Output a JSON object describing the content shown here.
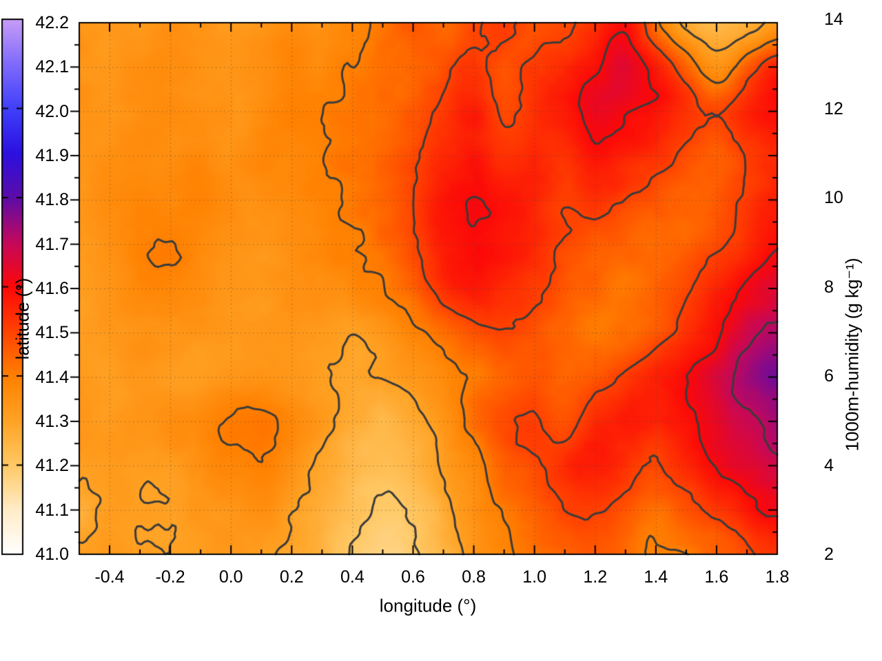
{
  "figure": {
    "background": "#ffffff",
    "axis_color": "#000000"
  },
  "chart_data": {
    "type": "heatmap",
    "title": "",
    "xlabel": "longitude (°)",
    "ylabel": "latitude (°)",
    "xlim": [
      -0.5,
      1.8
    ],
    "ylim": [
      41.0,
      42.2
    ],
    "grid_on": true,
    "grid_color": "rgba(70,70,70,0.55)",
    "xticks": {
      "values": [
        -0.4,
        -0.2,
        0.0,
        0.2,
        0.4,
        0.6,
        0.8,
        1.0,
        1.2,
        1.4,
        1.6,
        1.8
      ],
      "labels": [
        "-0.4",
        "-0.2",
        "0.0",
        "0.2",
        "0.4",
        "0.6",
        "0.8",
        "1.0",
        "1.2",
        "1.4",
        "1.6",
        "1.8"
      ],
      "minor_step": 0.1
    },
    "yticks": {
      "values": [
        41.0,
        41.1,
        41.2,
        41.3,
        41.4,
        41.5,
        41.6,
        41.7,
        41.8,
        41.9,
        42.0,
        42.1,
        42.2
      ],
      "labels": [
        "41.0",
        "41.1",
        "41.2",
        "41.3",
        "41.4",
        "41.5",
        "41.6",
        "41.7",
        "41.8",
        "41.9",
        "42.0",
        "42.1",
        "42.2"
      ],
      "minor_step": 0.05
    },
    "colorbar": {
      "label": "1000m-humidity (g kg⁻¹)",
      "min": 2,
      "max": 14,
      "ticks": [
        2,
        4,
        6,
        8,
        10,
        12,
        14
      ],
      "tick_labels": [
        "2",
        "4",
        "6",
        "8",
        "10",
        "12",
        "14"
      ],
      "palette_stops": [
        [
          2,
          "#ffffff"
        ],
        [
          3,
          "#ffecc7"
        ],
        [
          4,
          "#ffc864"
        ],
        [
          5,
          "#ffa224"
        ],
        [
          6,
          "#ff8000"
        ],
        [
          7,
          "#ff4200"
        ],
        [
          8,
          "#fc0808"
        ],
        [
          9,
          "#c4085c"
        ],
        [
          10,
          "#5c0ca8"
        ],
        [
          11,
          "#2c10e0"
        ],
        [
          12,
          "#4040fa"
        ],
        [
          13,
          "#806afc"
        ],
        [
          14,
          "#c69cf6"
        ]
      ]
    },
    "contour_levels": [
      4,
      5,
      6,
      7,
      8,
      9
    ],
    "contour_color": "#3b3b3b",
    "grid": {
      "lon_start": -0.5,
      "lon_step": 0.1,
      "lat_start": 42.2,
      "lat_step": -0.1,
      "values": [
        [
          5.4,
          5.3,
          5.2,
          5.5,
          5.4,
          5.2,
          5.4,
          5.7,
          5.5,
          5.8,
          6.2,
          6.6,
          6.3,
          6.9,
          7.1,
          6.7,
          6.9,
          7.4,
          7.9,
          6.2,
          4.8,
          4.5,
          4.6,
          5.2
        ],
        [
          5.4,
          5.3,
          5.5,
          5.6,
          5.4,
          5.3,
          5.5,
          5.8,
          5.7,
          6.0,
          6.2,
          6.5,
          6.8,
          7.3,
          6.7,
          7.1,
          7.4,
          7.9,
          8.4,
          7.7,
          6.6,
          5.4,
          6.6,
          7.6
        ],
        [
          5.5,
          5.4,
          5.6,
          5.7,
          5.5,
          5.4,
          5.6,
          5.9,
          6.0,
          6.1,
          6.3,
          6.6,
          7.1,
          7.6,
          6.9,
          7.3,
          7.7,
          8.3,
          8.1,
          7.9,
          7.3,
          6.9,
          7.5,
          7.9
        ],
        [
          5.3,
          5.5,
          5.7,
          5.6,
          5.7,
          5.5,
          5.7,
          5.8,
          6.0,
          6.2,
          6.4,
          6.8,
          7.4,
          7.7,
          7.3,
          7.5,
          7.3,
          7.9,
          7.6,
          7.3,
          6.9,
          6.5,
          7.0,
          7.4
        ],
        [
          5.4,
          5.6,
          5.8,
          5.7,
          5.8,
          5.6,
          5.5,
          5.7,
          5.9,
          6.1,
          6.5,
          7.0,
          7.8,
          8.0,
          7.8,
          7.5,
          7.1,
          7.3,
          7.0,
          6.7,
          6.4,
          6.7,
          7.1,
          7.7
        ],
        [
          5.3,
          5.5,
          5.9,
          6.0,
          5.7,
          5.5,
          5.4,
          5.6,
          5.8,
          6.0,
          6.3,
          6.9,
          7.7,
          7.9,
          7.8,
          7.4,
          6.9,
          6.7,
          6.5,
          6.3,
          6.5,
          6.9,
          7.3,
          7.9
        ],
        [
          5.2,
          5.4,
          5.7,
          5.8,
          5.6,
          5.4,
          5.3,
          5.5,
          5.6,
          5.7,
          6.0,
          6.5,
          7.3,
          7.7,
          7.5,
          7.1,
          6.7,
          6.4,
          6.2,
          6.5,
          6.9,
          7.5,
          8.1,
          8.5
        ],
        [
          5.1,
          5.3,
          5.5,
          5.4,
          5.3,
          5.2,
          5.3,
          5.4,
          5.3,
          5.1,
          5.4,
          5.8,
          6.3,
          6.7,
          6.9,
          6.7,
          6.4,
          6.1,
          6.3,
          6.7,
          7.3,
          7.9,
          8.7,
          9.1
        ],
        [
          5.2,
          5.1,
          5.3,
          5.2,
          5.1,
          5.3,
          5.4,
          5.3,
          5.0,
          4.8,
          5.0,
          5.3,
          5.7,
          6.1,
          6.5,
          6.7,
          6.5,
          6.7,
          7.1,
          7.5,
          7.9,
          8.5,
          9.3,
          9.7
        ],
        [
          5.3,
          5.2,
          5.4,
          5.6,
          5.8,
          6.1,
          6.2,
          5.8,
          5.3,
          4.7,
          4.5,
          4.8,
          5.4,
          6.3,
          6.9,
          7.1,
          6.7,
          7.3,
          7.7,
          7.5,
          7.9,
          8.3,
          8.9,
          9.3
        ],
        [
          5.1,
          5.3,
          5.1,
          5.2,
          5.5,
          5.8,
          5.9,
          5.5,
          4.9,
          4.4,
          4.2,
          4.5,
          5.1,
          5.7,
          6.5,
          6.9,
          7.3,
          7.7,
          7.3,
          6.9,
          7.5,
          8.1,
          8.5,
          8.9
        ],
        [
          4.7,
          5.1,
          5.0,
          5.1,
          5.3,
          5.4,
          5.5,
          5.1,
          4.7,
          4.2,
          3.9,
          4.1,
          4.7,
          5.5,
          6.1,
          6.5,
          6.9,
          7.1,
          6.7,
          6.3,
          6.7,
          7.1,
          7.7,
          8.1
        ],
        [
          5.1,
          5.3,
          5.1,
          5.0,
          5.2,
          5.3,
          5.1,
          4.8,
          4.5,
          4.0,
          3.7,
          3.9,
          4.5,
          5.3,
          5.9,
          6.3,
          6.5,
          6.7,
          6.3,
          5.9,
          6.1,
          6.5,
          6.9,
          7.3
        ]
      ]
    }
  }
}
